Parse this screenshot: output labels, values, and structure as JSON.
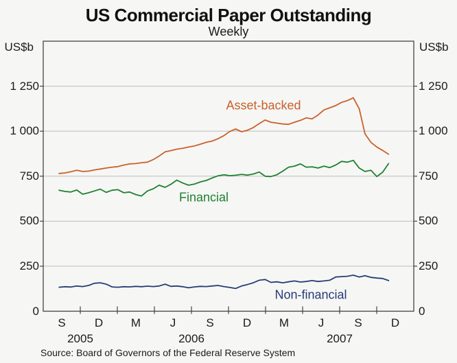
{
  "title": "US Commercial Paper Outstanding",
  "subtitle": "Weekly",
  "axes": {
    "unit_left": "US$b",
    "unit_right": "US$b"
  },
  "source": "Source: Board of Governors of the Federal Reserve System",
  "colors": {
    "background": "#f6f6f4",
    "grid": "#bdbdbd",
    "axis": "#444444",
    "title_text": "#111111",
    "text": "#1a1a1a",
    "asset_backed": "#c9602a",
    "financial": "#1e8032",
    "non_financial": "#263c77"
  },
  "chart_data": {
    "type": "line",
    "title": "US Commercial Paper Outstanding",
    "subtitle": "Weekly",
    "ylabel": "US$b",
    "ylim": [
      0,
      1500
    ],
    "ytick_interval": 250,
    "ytick_labels": [
      "0",
      "250",
      "500",
      "750",
      "1 000",
      "1 250"
    ],
    "grid": true,
    "legend_position": "inline-labels",
    "x_domain": [
      2005.583,
      2008.083
    ],
    "x_month_labels": [
      "S",
      "D",
      "M",
      "J",
      "S",
      "D",
      "M",
      "J",
      "S",
      "D"
    ],
    "x_year_labels": [
      {
        "label": "2005",
        "boundary": 1
      },
      {
        "label": "2006",
        "boundary": 4
      },
      {
        "label": "2007",
        "boundary": 8
      }
    ],
    "x": [
      2005.69,
      2005.73,
      2005.769,
      2005.809,
      2005.849,
      2005.889,
      2005.928,
      2005.968,
      2006.008,
      2006.047,
      2006.087,
      2006.127,
      2006.166,
      2006.206,
      2006.246,
      2006.286,
      2006.325,
      2006.365,
      2006.405,
      2006.444,
      2006.484,
      2006.524,
      2006.563,
      2006.603,
      2006.643,
      2006.683,
      2006.722,
      2006.762,
      2006.802,
      2006.841,
      2006.881,
      2006.921,
      2006.96,
      2007.0,
      2007.04,
      2007.08,
      2007.119,
      2007.159,
      2007.199,
      2007.238,
      2007.278,
      2007.318,
      2007.357,
      2007.397,
      2007.437,
      2007.477,
      2007.516,
      2007.556,
      2007.596,
      2007.635,
      2007.675,
      2007.715,
      2007.754,
      2007.794,
      2007.834,
      2007.873,
      2007.913
    ],
    "series": [
      {
        "id": "asset-backed",
        "name": "Asset-backed",
        "color": "#c9602a",
        "values": [
          765,
          768,
          775,
          783,
          776,
          778,
          785,
          790,
          795,
          800,
          803,
          812,
          818,
          820,
          825,
          828,
          842,
          862,
          885,
          892,
          900,
          905,
          912,
          918,
          928,
          938,
          945,
          958,
          975,
          998,
          1012,
          997,
          1005,
          1020,
          1042,
          1062,
          1050,
          1045,
          1040,
          1038,
          1050,
          1060,
          1074,
          1068,
          1090,
          1118,
          1130,
          1142,
          1160,
          1170,
          1185,
          1125,
          985,
          938,
          912,
          893,
          872
        ]
      },
      {
        "id": "financial",
        "name": "Financial",
        "color": "#1e8032",
        "values": [
          672,
          665,
          662,
          673,
          650,
          658,
          668,
          678,
          660,
          672,
          675,
          658,
          662,
          648,
          640,
          668,
          680,
          700,
          688,
          705,
          728,
          712,
          700,
          706,
          718,
          726,
          740,
          752,
          758,
          753,
          755,
          760,
          756,
          762,
          773,
          750,
          748,
          758,
          778,
          800,
          806,
          818,
          800,
          802,
          795,
          806,
          798,
          812,
          832,
          828,
          838,
          795,
          776,
          783,
          748,
          772,
          820
        ]
      },
      {
        "id": "non-financial",
        "name": "Non-financial",
        "color": "#263c77",
        "values": [
          133,
          136,
          134,
          140,
          137,
          143,
          155,
          158,
          150,
          135,
          133,
          136,
          135,
          138,
          136,
          139,
          137,
          140,
          150,
          138,
          140,
          136,
          130,
          135,
          138,
          137,
          140,
          143,
          137,
          132,
          126,
          140,
          148,
          158,
          172,
          176,
          160,
          163,
          158,
          163,
          168,
          162,
          165,
          170,
          165,
          168,
          172,
          190,
          192,
          194,
          200,
          190,
          197,
          188,
          184,
          182,
          170
        ]
      }
    ]
  }
}
